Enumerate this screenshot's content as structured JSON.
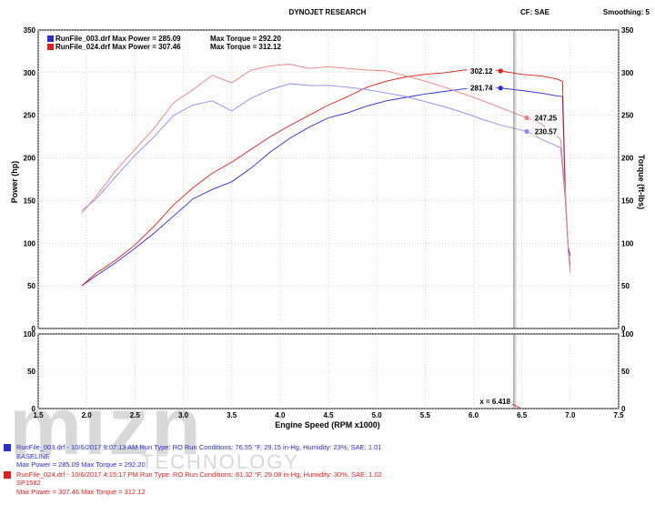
{
  "header": {
    "title": "DYNOJET RESEARCH",
    "cf_label": "CF: SAE",
    "smoothing_label": "Smoothing: 5"
  },
  "watermark": {
    "logo": "mizn",
    "sub": "TECHNOLOGY"
  },
  "chart_data": [
    {
      "type": "line",
      "xlabel": "Engine Speed (RPM x1000)",
      "ylabel_left": "Power (hp)",
      "ylabel_right": "Torque (ft-lbs)",
      "xlim": [
        1.5,
        7.5
      ],
      "ylim": [
        0,
        350
      ],
      "x_ticks": [
        "1.5",
        "2.0",
        "2.5",
        "3.0",
        "3.5",
        "4.0",
        "4.5",
        "5.0",
        "5.5",
        "6.0",
        "6.5",
        "7.0",
        "7.5"
      ],
      "y_ticks": [
        "0",
        "50",
        "100",
        "150",
        "200",
        "250",
        "300",
        "350"
      ],
      "grid": true,
      "legend_placement": "top-left",
      "legend": [
        {
          "label": "RunFile_003.drf Max Power = 285.09",
          "torque": "Max Torque = 292.20",
          "color": "#2b2bd6"
        },
        {
          "label": "RunFile_024.drf Max Power = 307.46",
          "torque": "Max Torque = 312.12",
          "color": "#e01e1e"
        }
      ],
      "series": [
        {
          "name": "RunFile_003.drf",
          "quantity": "Power",
          "color": "#2b2bd6",
          "x": [
            1.95,
            2.1,
            2.3,
            2.5,
            2.7,
            2.9,
            3.1,
            3.3,
            3.5,
            3.7,
            3.9,
            4.1,
            4.3,
            4.5,
            4.7,
            4.9,
            5.1,
            5.3,
            5.5,
            5.7,
            5.9,
            6.1,
            6.28,
            6.5,
            6.7,
            6.85,
            6.92,
            6.95,
            6.98,
            7.0
          ],
          "y": [
            50,
            62,
            77,
            94,
            112,
            132,
            152,
            163,
            172,
            188,
            207,
            223,
            236,
            247,
            253,
            261,
            267,
            271,
            275,
            278,
            281,
            282,
            282,
            279,
            276,
            273,
            272,
            150,
            95,
            85
          ]
        },
        {
          "name": "RunFile_024.drf",
          "quantity": "Power",
          "color": "#e01e1e",
          "x": [
            1.95,
            2.1,
            2.3,
            2.5,
            2.7,
            2.9,
            3.1,
            3.3,
            3.5,
            3.7,
            3.9,
            4.1,
            4.3,
            4.5,
            4.7,
            4.9,
            5.1,
            5.3,
            5.5,
            5.7,
            5.9,
            6.1,
            6.28,
            6.5,
            6.7,
            6.85,
            6.92,
            6.95,
            6.98,
            7.0
          ],
          "y": [
            50,
            65,
            80,
            98,
            120,
            145,
            165,
            182,
            195,
            210,
            225,
            238,
            250,
            262,
            272,
            283,
            290,
            295,
            298,
            300,
            303,
            304,
            302,
            298,
            296,
            293,
            290,
            160,
            90,
            75
          ]
        },
        {
          "name": "RunFile_003.drf",
          "quantity": "Torque",
          "color": "#8a8af0",
          "x": [
            1.95,
            2.1,
            2.3,
            2.5,
            2.7,
            2.9,
            3.1,
            3.3,
            3.5,
            3.7,
            3.9,
            4.1,
            4.3,
            4.5,
            4.7,
            4.9,
            5.1,
            5.3,
            5.5,
            5.7,
            5.9,
            6.1,
            6.3,
            6.55,
            6.7,
            6.9,
            6.95,
            6.98,
            7.0
          ],
          "y": [
            138,
            152,
            178,
            203,
            225,
            250,
            262,
            267,
            255,
            270,
            280,
            287,
            285,
            285,
            283,
            280,
            276,
            272,
            266,
            260,
            253,
            245,
            238,
            231,
            222,
            212,
            150,
            90,
            70
          ]
        },
        {
          "name": "RunFile_024.drf",
          "quantity": "Torque",
          "color": "#f08080",
          "x": [
            1.95,
            2.1,
            2.3,
            2.5,
            2.7,
            2.9,
            3.1,
            3.3,
            3.5,
            3.7,
            3.9,
            4.1,
            4.3,
            4.5,
            4.7,
            4.9,
            5.1,
            5.3,
            5.5,
            5.7,
            5.9,
            6.1,
            6.3,
            6.55,
            6.7,
            6.9,
            6.95,
            6.98,
            7.0
          ],
          "y": [
            135,
            155,
            185,
            210,
            235,
            265,
            280,
            297,
            288,
            303,
            308,
            310,
            305,
            307,
            305,
            303,
            302,
            296,
            290,
            283,
            275,
            267,
            258,
            247,
            240,
            222,
            160,
            95,
            65
          ]
        }
      ],
      "callouts": [
        {
          "value": "302.12",
          "x": 6.28,
          "y": 302,
          "color": "#e01e1e"
        },
        {
          "value": "281.74",
          "x": 6.28,
          "y": 282,
          "color": "#2b2bd6"
        },
        {
          "value": "247.25",
          "x": 6.55,
          "y": 247,
          "color": "#f08080"
        },
        {
          "value": "230.57",
          "x": 6.55,
          "y": 231,
          "color": "#8a8af0"
        }
      ],
      "cursor_x": 6.418
    },
    {
      "type": "line",
      "xlim": [
        1.5,
        7.5
      ],
      "ylim": [
        0,
        100
      ],
      "y_ticks": [
        "0",
        "50",
        "100"
      ],
      "grid": true,
      "series": [],
      "cursor_label": "x = 6.418",
      "cursor_x": 6.418
    }
  ],
  "footer": [
    {
      "color": "#2b2bd6",
      "line1": "RunFile_003.drf - 10/6/2017 9:07:13 AM  Run Type: RO  Run Conditions: 76.55 °F, 29.15 in-Hg,  Humidity:  23%, SAE: 1.01",
      "line2": "BASELINE",
      "line3": "Max Power = 285.09  Max Torque = 292.20"
    },
    {
      "color": "#e01e1e",
      "line1": "RunFile_024.drf - 10/6/2017 4:15:17 PM  Run Type: RO  Run Conditions: 81.32 °F, 29.08 in-Hg,  Humidity:  30%, SAE: 1.02",
      "line2": "SP1582",
      "line3": "Max Power = 307.46  Max Torque = 312.12"
    }
  ]
}
